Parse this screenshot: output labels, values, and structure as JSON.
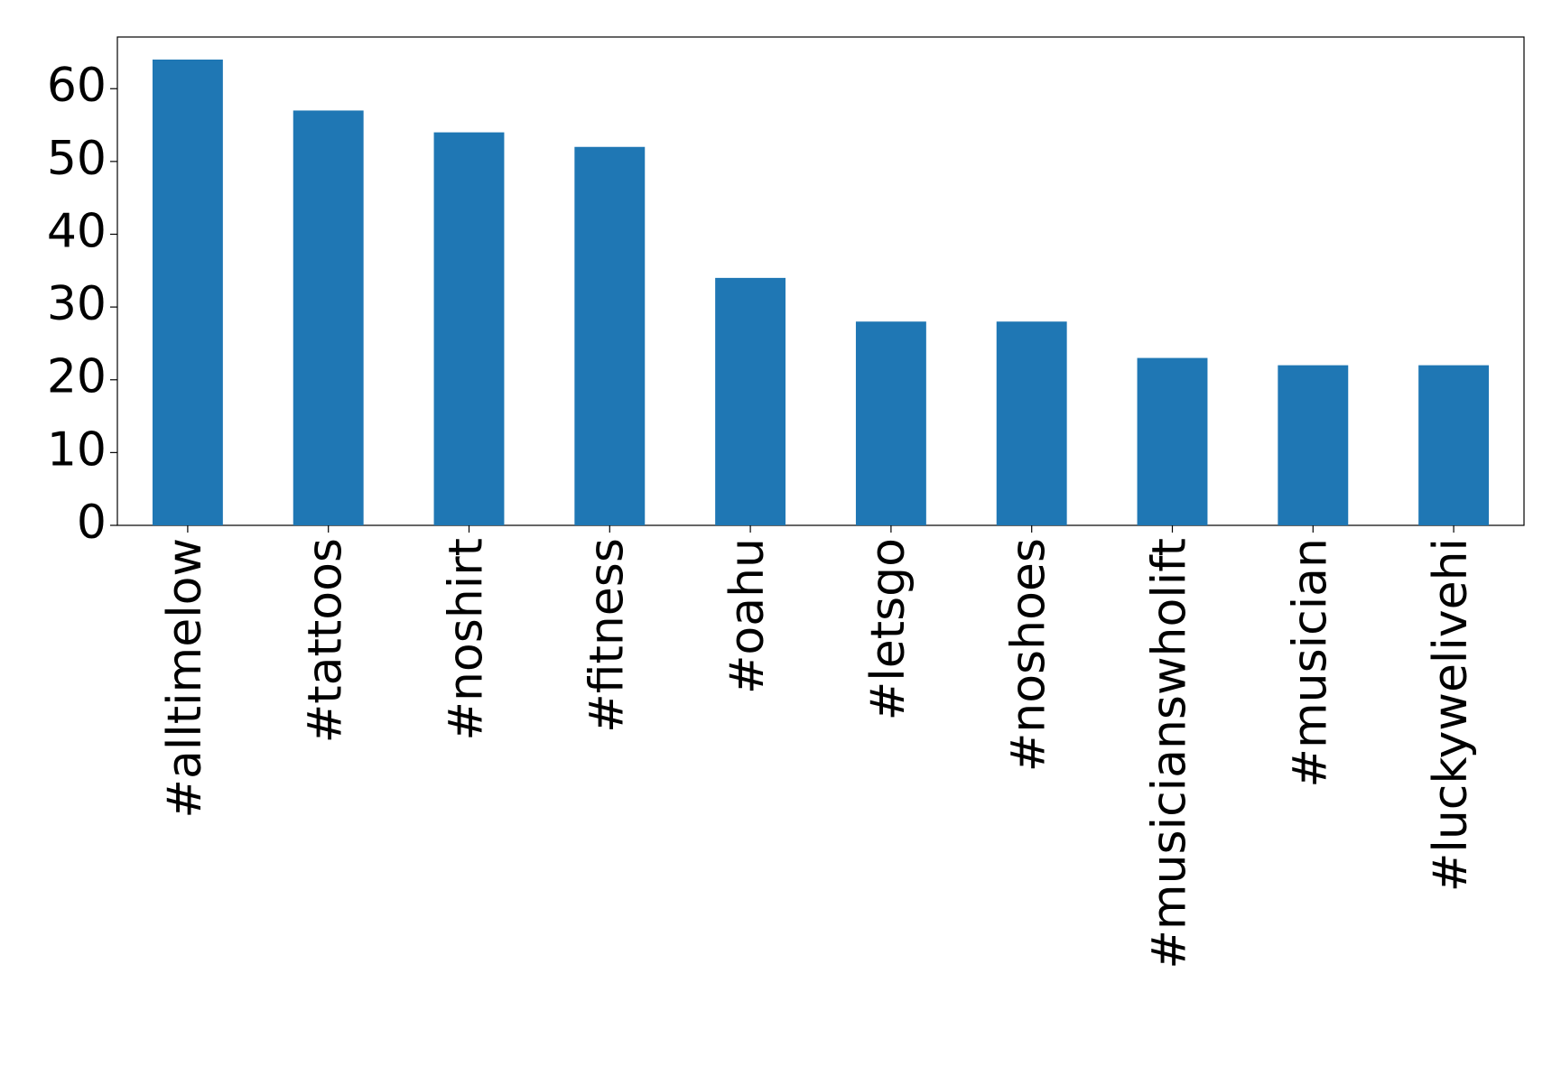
{
  "chart_data": {
    "type": "bar",
    "categories": [
      "#alltimelow",
      "#tattoos",
      "#noshirt",
      "#fitness",
      "#oahu",
      "#letsgo",
      "#noshoes",
      "#musicianswholift",
      "#musician",
      "#luckywelivehi"
    ],
    "values": [
      64,
      57,
      54,
      52,
      34,
      28,
      28,
      23,
      22,
      22
    ],
    "color": "#1f77b4",
    "ylim": [
      0,
      67.1
    ],
    "yticks": [
      0,
      10,
      20,
      30,
      40,
      50,
      60
    ],
    "grid": false
  }
}
